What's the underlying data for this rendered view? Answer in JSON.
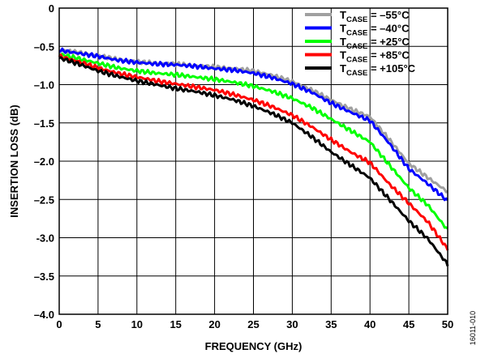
{
  "chart_data": {
    "type": "line",
    "xlabel": "FREQUENCY (GHz)",
    "ylabel": "INSERTION LOSS (dB)",
    "xlim": [
      0,
      50
    ],
    "ylim": [
      -4.0,
      0
    ],
    "x_ticks": [
      0,
      5,
      10,
      15,
      20,
      25,
      30,
      35,
      40,
      45,
      50
    ],
    "x_tick_labels": [
      "0",
      "5",
      "10",
      "15",
      "20",
      "25",
      "30",
      "35",
      "40",
      "45",
      "50"
    ],
    "y_ticks": [
      0,
      -0.5,
      -1.0,
      -1.5,
      -2.0,
      -2.5,
      -3.0,
      -3.5,
      -4.0
    ],
    "y_tick_labels": [
      "0",
      "–0.5",
      "–1.0",
      "–1.5",
      "–2.0",
      "–2.5",
      "-3.0",
      "–3.5",
      "–4.0"
    ],
    "grid": true,
    "legend_position": "top-right",
    "figure_id": "16011-010",
    "x": [
      0,
      2.5,
      5,
      7.5,
      10,
      12.5,
      15,
      17.5,
      20,
      22.5,
      25,
      27.5,
      30,
      32.5,
      35,
      37.5,
      40,
      42.5,
      45,
      47.5,
      50
    ],
    "series": [
      {
        "name_main": "T",
        "name_sub": "CASE",
        "name_value": " = –55°C",
        "color": "#a0a0a0",
        "values": [
          -0.55,
          -0.58,
          -0.62,
          -0.67,
          -0.7,
          -0.72,
          -0.73,
          -0.75,
          -0.77,
          -0.79,
          -0.82,
          -0.88,
          -0.96,
          -1.07,
          -1.2,
          -1.32,
          -1.42,
          -1.72,
          -2.03,
          -2.22,
          -2.4
        ]
      },
      {
        "name_main": "T",
        "name_sub": "CASE",
        "name_value": " = –40°C",
        "color": "#0000ff",
        "values": [
          -0.55,
          -0.59,
          -0.63,
          -0.68,
          -0.71,
          -0.73,
          -0.74,
          -0.76,
          -0.79,
          -0.81,
          -0.85,
          -0.91,
          -0.99,
          -1.1,
          -1.24,
          -1.36,
          -1.47,
          -1.77,
          -2.1,
          -2.3,
          -2.52
        ]
      },
      {
        "name_main": "T",
        "name_sub": "CASE",
        "name_value": " = +25°C",
        "color": "#00ff00",
        "values": [
          -0.6,
          -0.66,
          -0.72,
          -0.78,
          -0.82,
          -0.85,
          -0.87,
          -0.9,
          -0.93,
          -0.97,
          -1.02,
          -1.09,
          -1.18,
          -1.3,
          -1.45,
          -1.6,
          -1.75,
          -2.05,
          -2.35,
          -2.58,
          -2.9
        ]
      },
      {
        "name_main": "T",
        "name_sub": "CASE",
        "name_value": " = +85°C",
        "color": "#ff0000",
        "values": [
          -0.63,
          -0.7,
          -0.78,
          -0.85,
          -0.9,
          -0.95,
          -0.99,
          -1.03,
          -1.07,
          -1.13,
          -1.2,
          -1.29,
          -1.4,
          -1.55,
          -1.72,
          -1.88,
          -2.02,
          -2.3,
          -2.55,
          -2.8,
          -3.15
        ]
      },
      {
        "name_main": "T",
        "name_sub": "CASE",
        "name_value": " = +105°C",
        "color": "#000000",
        "values": [
          -0.65,
          -0.73,
          -0.82,
          -0.89,
          -0.95,
          -1.0,
          -1.05,
          -1.09,
          -1.14,
          -1.2,
          -1.28,
          -1.38,
          -1.5,
          -1.68,
          -1.88,
          -2.05,
          -2.22,
          -2.5,
          -2.78,
          -3.02,
          -3.35
        ]
      }
    ]
  }
}
